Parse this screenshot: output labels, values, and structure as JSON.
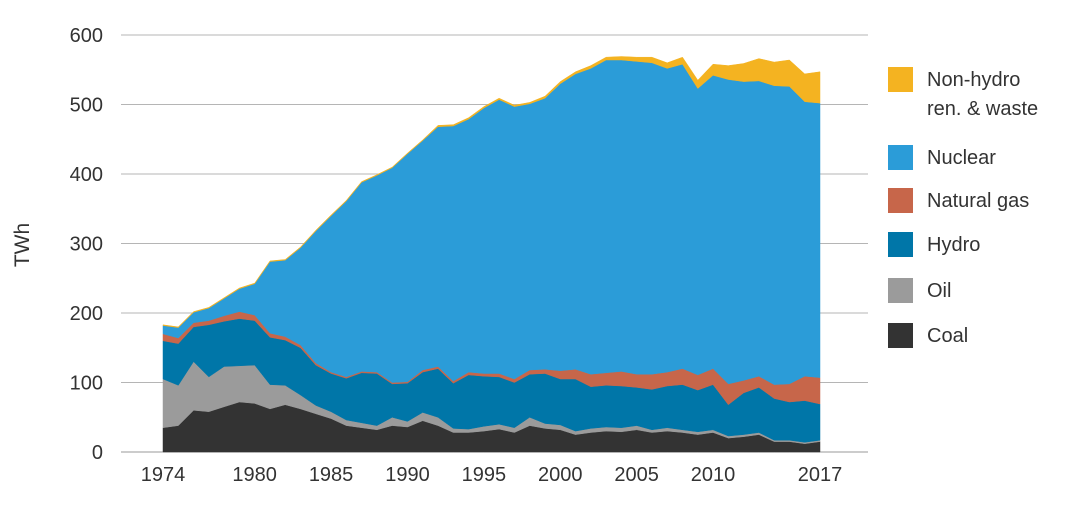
{
  "chart_data": {
    "type": "area",
    "stacked": true,
    "ylabel": "TWh",
    "xlabel": "",
    "title": "",
    "ylim": [
      0,
      600
    ],
    "yticks": [
      0,
      100,
      200,
      300,
      400,
      500,
      600
    ],
    "xticks": [
      1974,
      1980,
      1985,
      1990,
      1995,
      2000,
      2005,
      2010,
      2017
    ],
    "grid": "horizontal",
    "legend_position": "right",
    "x": [
      1974,
      1975,
      1976,
      1977,
      1978,
      1979,
      1980,
      1981,
      1982,
      1983,
      1984,
      1985,
      1986,
      1987,
      1988,
      1989,
      1990,
      1991,
      1992,
      1993,
      1994,
      1995,
      1996,
      1997,
      1998,
      1999,
      2000,
      2001,
      2002,
      2003,
      2004,
      2005,
      2006,
      2007,
      2008,
      2009,
      2010,
      2011,
      2012,
      2013,
      2014,
      2015,
      2016,
      2017
    ],
    "series": [
      {
        "name": "Coal",
        "color": "#333333",
        "values": [
          35,
          38,
          60,
          58,
          65,
          72,
          70,
          62,
          68,
          62,
          55,
          48,
          38,
          35,
          32,
          38,
          36,
          45,
          38,
          28,
          28,
          30,
          33,
          28,
          38,
          34,
          32,
          25,
          28,
          30,
          29,
          32,
          28,
          30,
          28,
          25,
          28,
          20,
          22,
          25,
          15,
          15,
          12,
          15
        ]
      },
      {
        "name": "Oil",
        "color": "#9b9b9b",
        "values": [
          70,
          58,
          70,
          50,
          58,
          52,
          55,
          35,
          28,
          20,
          12,
          10,
          8,
          7,
          6,
          12,
          8,
          12,
          12,
          6,
          5,
          7,
          7,
          7,
          12,
          7,
          7,
          5,
          6,
          6,
          6,
          6,
          4,
          5,
          4,
          4,
          4,
          3,
          3,
          3,
          2,
          2,
          2,
          2
        ]
      },
      {
        "name": "Hydro",
        "color": "#0076a8",
        "values": [
          55,
          60,
          50,
          75,
          65,
          68,
          64,
          68,
          65,
          68,
          58,
          55,
          60,
          72,
          75,
          48,
          55,
          58,
          70,
          65,
          78,
          72,
          68,
          65,
          62,
          72,
          66,
          75,
          60,
          60,
          60,
          55,
          58,
          60,
          65,
          60,
          65,
          45,
          60,
          65,
          60,
          55,
          60,
          52
        ]
      },
      {
        "name": "Natural gas",
        "color": "#c7664a",
        "values": [
          10,
          8,
          6,
          6,
          8,
          10,
          8,
          6,
          5,
          4,
          3,
          2,
          2,
          2,
          2,
          2,
          2,
          3,
          3,
          3,
          4,
          4,
          5,
          5,
          6,
          6,
          12,
          14,
          18,
          18,
          21,
          19,
          22,
          20,
          23,
          22,
          23,
          30,
          18,
          16,
          20,
          26,
          35,
          38
        ]
      },
      {
        "name": "Nuclear",
        "color": "#2b9cd8",
        "values": [
          12,
          15,
          15,
          18,
          25,
          33,
          45,
          103,
          110,
          140,
          190,
          225,
          253,
          272,
          283,
          309,
          328,
          330,
          345,
          367,
          364,
          382,
          394,
          392,
          383,
          390,
          413,
          425,
          440,
          450,
          448,
          450,
          448,
          437,
          438,
          412,
          422,
          438,
          430,
          425,
          430,
          428,
          395,
          395
        ]
      },
      {
        "name": "Non-hydro ren. & waste",
        "color": "#f4b321",
        "values": [
          1,
          1,
          1,
          1,
          1,
          1,
          1,
          1,
          1,
          1,
          1,
          1,
          1,
          1,
          1,
          1,
          1,
          1,
          2,
          2,
          2,
          2,
          2,
          2,
          2,
          3,
          3,
          3,
          4,
          4,
          5,
          6,
          8,
          8,
          10,
          12,
          16,
          20,
          26,
          32,
          34,
          38,
          40,
          45
        ]
      }
    ]
  },
  "legend": [
    {
      "label": "Non-hydro\nren. & waste",
      "color": "#f4b321"
    },
    {
      "label": "Nuclear",
      "color": "#2b9cd8"
    },
    {
      "label": "Natural gas",
      "color": "#c7664a"
    },
    {
      "label": "Hydro",
      "color": "#0076a8"
    },
    {
      "label": "Oil",
      "color": "#9b9b9b"
    },
    {
      "label": "Coal",
      "color": "#333333"
    }
  ]
}
